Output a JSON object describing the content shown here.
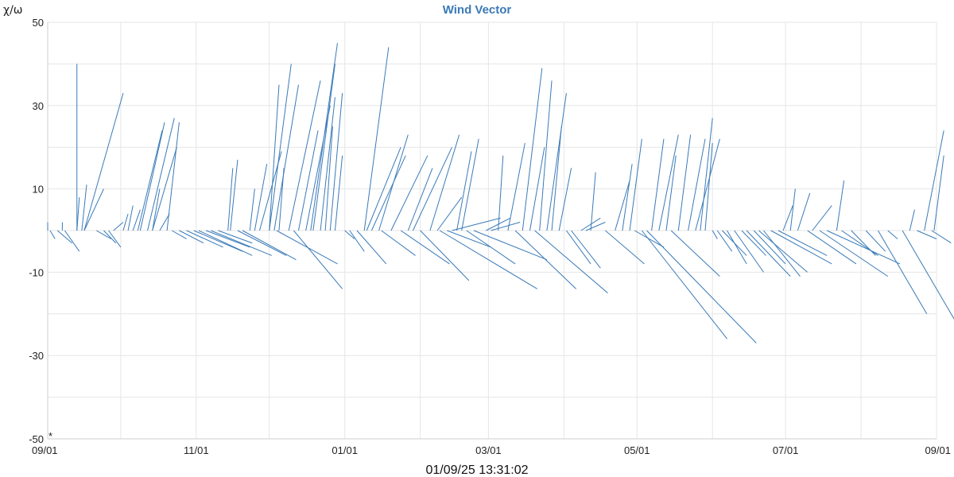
{
  "chart_data": {
    "type": "vector",
    "title": "Wind Vector",
    "ylabel": "χ/ω",
    "xlabel": "",
    "ylim": [
      -50,
      50
    ],
    "y_ticks": [
      "50",
      "30",
      "10",
      "-10",
      "-30",
      "-50"
    ],
    "y_tick_values": [
      50,
      30,
      10,
      -10,
      -30,
      -50
    ],
    "x_range": [
      "2024-09-01",
      "2025-09-01"
    ],
    "x_ticks": [
      {
        "label": "09/01",
        "date": "2024-09-01"
      },
      {
        "label": "11/01",
        "date": "2024-11-01"
      },
      {
        "label": "01/01",
        "date": "2025-01-01"
      },
      {
        "label": "03/01",
        "date": "2025-03-01"
      },
      {
        "label": "05/01",
        "date": "2025-05-01"
      },
      {
        "label": "07/01",
        "date": "2025-07-01"
      },
      {
        "label": "09/01",
        "date": "2025-09-01"
      }
    ],
    "grid": true,
    "series_color": "#3a7ab8",
    "vector_units": "days, χ/ω",
    "vectors": [
      [
        "2024-09-01",
        0,
        0,
        2
      ],
      [
        "2024-09-02",
        0,
        2,
        -2
      ],
      [
        "2024-09-05",
        0,
        6,
        -3
      ],
      [
        "2024-09-07",
        0,
        0,
        2
      ],
      [
        "2024-09-08",
        0,
        6,
        -5
      ],
      [
        "2024-09-13",
        0,
        0,
        40
      ],
      [
        "2024-09-13",
        0,
        1,
        8
      ],
      [
        "2024-09-15",
        0,
        2,
        11
      ],
      [
        "2024-09-16",
        0,
        8,
        10
      ],
      [
        "2024-09-16",
        0,
        16,
        33
      ],
      [
        "2024-09-21",
        0,
        6,
        -2
      ],
      [
        "2024-09-24",
        0,
        5,
        -3
      ],
      [
        "2024-09-26",
        0,
        5,
        -4
      ],
      [
        "2024-09-28",
        0,
        4,
        2
      ],
      [
        "2024-10-02",
        0,
        2,
        4
      ],
      [
        "2024-10-04",
        0,
        2,
        6
      ],
      [
        "2024-10-06",
        0,
        3,
        5
      ],
      [
        "2024-10-08",
        0,
        10,
        24
      ],
      [
        "2024-10-09",
        0,
        10,
        26
      ],
      [
        "2024-10-12",
        0,
        11,
        27
      ],
      [
        "2024-10-14",
        0,
        10,
        20
      ],
      [
        "2024-10-14",
        0,
        3,
        10
      ],
      [
        "2024-10-17",
        0,
        4,
        4
      ],
      [
        "2024-10-20",
        0,
        5,
        26
      ],
      [
        "2024-10-22",
        0,
        6,
        -2
      ],
      [
        "2024-10-25",
        0,
        10,
        -3
      ],
      [
        "2024-10-28",
        0,
        15,
        -4
      ],
      [
        "2024-10-31",
        0,
        20,
        -5
      ],
      [
        "2024-11-02",
        0,
        22,
        -6
      ],
      [
        "2024-11-05",
        0,
        18,
        -4
      ],
      [
        "2024-11-07",
        0,
        25,
        -6
      ],
      [
        "2024-11-10",
        0,
        14,
        -3
      ],
      [
        "2024-11-14",
        0,
        2,
        15
      ],
      [
        "2024-11-15",
        0,
        3,
        17
      ],
      [
        "2024-11-18",
        0,
        20,
        -6
      ],
      [
        "2024-11-20",
        0,
        22,
        -7
      ],
      [
        "2024-11-23",
        0,
        2,
        10
      ],
      [
        "2024-11-25",
        0,
        5,
        16
      ],
      [
        "2024-11-27",
        0,
        9,
        19
      ],
      [
        "2024-12-01",
        0,
        4,
        35
      ],
      [
        "2024-12-01",
        0,
        9,
        40
      ],
      [
        "2024-12-03",
        0,
        10,
        35
      ],
      [
        "2024-12-04",
        0,
        25,
        -8
      ],
      [
        "2024-12-05",
        0,
        2,
        15
      ],
      [
        "2024-12-09",
        0,
        13,
        36
      ],
      [
        "2024-12-11",
        0,
        20,
        -14
      ],
      [
        "2024-12-13",
        0,
        8,
        24
      ],
      [
        "2024-12-16",
        0,
        10,
        30
      ],
      [
        "2024-12-18",
        0,
        11,
        45
      ],
      [
        "2024-12-19",
        0,
        9,
        40
      ],
      [
        "2024-12-22",
        0,
        6,
        32
      ],
      [
        "2024-12-24",
        0,
        3,
        25
      ],
      [
        "2024-12-26",
        0,
        5,
        33
      ],
      [
        "2024-12-28",
        0,
        3,
        18
      ],
      [
        "2025-01-01",
        0,
        4,
        -2
      ],
      [
        "2025-01-03",
        0,
        6,
        -5
      ],
      [
        "2025-01-06",
        0,
        12,
        -8
      ],
      [
        "2025-01-09",
        0,
        10,
        44
      ],
      [
        "2025-01-10",
        0,
        14,
        20
      ],
      [
        "2025-01-12",
        0,
        14,
        18
      ],
      [
        "2025-01-15",
        0,
        12,
        23
      ],
      [
        "2025-01-16",
        0,
        14,
        -6
      ],
      [
        "2025-01-20",
        0,
        15,
        18
      ],
      [
        "2025-01-24",
        0,
        20,
        -8
      ],
      [
        "2025-01-27",
        0,
        10,
        15
      ],
      [
        "2025-01-29",
        0,
        16,
        20
      ],
      [
        "2025-02-01",
        0,
        20,
        -12
      ],
      [
        "2025-02-05",
        0,
        12,
        23
      ],
      [
        "2025-02-08",
        0,
        10,
        8
      ],
      [
        "2025-02-09",
        0,
        40,
        -14
      ],
      [
        "2025-02-12",
        0,
        18,
        -4
      ],
      [
        "2025-02-14",
        0,
        20,
        3
      ],
      [
        "2025-02-16",
        0,
        6,
        19
      ],
      [
        "2025-02-18",
        0,
        7,
        22
      ],
      [
        "2025-02-20",
        0,
        20,
        -8
      ],
      [
        "2025-02-23",
        0,
        30,
        -7
      ],
      [
        "2025-02-28",
        0,
        10,
        3
      ],
      [
        "2025-03-02",
        0,
        12,
        2
      ],
      [
        "2025-03-05",
        0,
        2,
        18
      ],
      [
        "2025-03-09",
        0,
        7,
        21
      ],
      [
        "2025-03-12",
        0,
        25,
        -14
      ],
      [
        "2025-03-15",
        0,
        8,
        39
      ],
      [
        "2025-03-18",
        0,
        6,
        20
      ],
      [
        "2025-03-20",
        0,
        30,
        -15
      ],
      [
        "2025-03-22",
        0,
        5,
        36
      ],
      [
        "2025-03-25",
        0,
        8,
        33
      ],
      [
        "2025-03-27",
        0,
        4,
        25
      ],
      [
        "2025-03-30",
        0,
        5,
        15
      ],
      [
        "2025-04-02",
        0,
        10,
        -8
      ],
      [
        "2025-04-04",
        0,
        12,
        -9
      ],
      [
        "2025-04-08",
        0,
        8,
        3
      ],
      [
        "2025-04-10",
        0,
        8,
        2
      ],
      [
        "2025-04-12",
        0,
        2,
        14
      ],
      [
        "2025-04-18",
        0,
        16,
        -8
      ],
      [
        "2025-04-22",
        0,
        6,
        12
      ],
      [
        "2025-04-25",
        0,
        4,
        16
      ],
      [
        "2025-04-28",
        0,
        5,
        22
      ],
      [
        "2025-04-30",
        0,
        12,
        -4
      ],
      [
        "2025-05-03",
        0,
        35,
        -26
      ],
      [
        "2025-05-05",
        0,
        45,
        -27
      ],
      [
        "2025-05-07",
        0,
        5,
        22
      ],
      [
        "2025-05-10",
        0,
        8,
        23
      ],
      [
        "2025-05-13",
        0,
        4,
        18
      ],
      [
        "2025-05-15",
        0,
        20,
        -11
      ],
      [
        "2025-05-18",
        0,
        5,
        23
      ],
      [
        "2025-05-22",
        0,
        7,
        22
      ],
      [
        "2025-05-25",
        0,
        10,
        22
      ],
      [
        "2025-05-27",
        0,
        5,
        27
      ],
      [
        "2025-05-29",
        0,
        3,
        21
      ],
      [
        "2025-06-01",
        0,
        2,
        -2
      ],
      [
        "2025-06-03",
        0,
        6,
        -5
      ],
      [
        "2025-06-05",
        0,
        10,
        -6
      ],
      [
        "2025-06-07",
        0,
        8,
        -8
      ],
      [
        "2025-06-10",
        0,
        12,
        -10
      ],
      [
        "2025-06-13",
        0,
        10,
        -6
      ],
      [
        "2025-06-15",
        0,
        18,
        -11
      ],
      [
        "2025-06-18",
        0,
        13,
        -8
      ],
      [
        "2025-06-20",
        0,
        20,
        -10
      ],
      [
        "2025-06-22",
        0,
        15,
        -11
      ],
      [
        "2025-06-25",
        0,
        25,
        -8
      ],
      [
        "2025-06-28",
        0,
        20,
        -6
      ],
      [
        "2025-06-30",
        0,
        4,
        6
      ],
      [
        "2025-07-03",
        0,
        2,
        10
      ],
      [
        "2025-07-06",
        0,
        5,
        9
      ],
      [
        "2025-07-10",
        0,
        20,
        -8
      ],
      [
        "2025-07-12",
        0,
        8,
        6
      ],
      [
        "2025-07-15",
        0,
        28,
        -11
      ],
      [
        "2025-07-18",
        0,
        30,
        -8
      ],
      [
        "2025-07-22",
        0,
        3,
        12
      ],
      [
        "2025-07-24",
        0,
        15,
        -6
      ],
      [
        "2025-07-28",
        0,
        10,
        -6
      ],
      [
        "2025-08-03",
        0,
        8,
        -5
      ],
      [
        "2025-08-08",
        0,
        20,
        -20
      ],
      [
        "2025-08-12",
        0,
        4,
        -2
      ],
      [
        "2025-08-18",
        0,
        22,
        -22
      ],
      [
        "2025-08-21",
        0,
        2,
        5
      ],
      [
        "2025-08-24",
        0,
        8,
        -2
      ],
      [
        "2025-08-27",
        0,
        8,
        24
      ],
      [
        "2025-08-30",
        0,
        8,
        -3
      ],
      [
        "2025-08-31",
        0,
        4,
        18
      ]
    ]
  },
  "footer": {
    "timestamp": "01/09/25 13:31:02"
  }
}
